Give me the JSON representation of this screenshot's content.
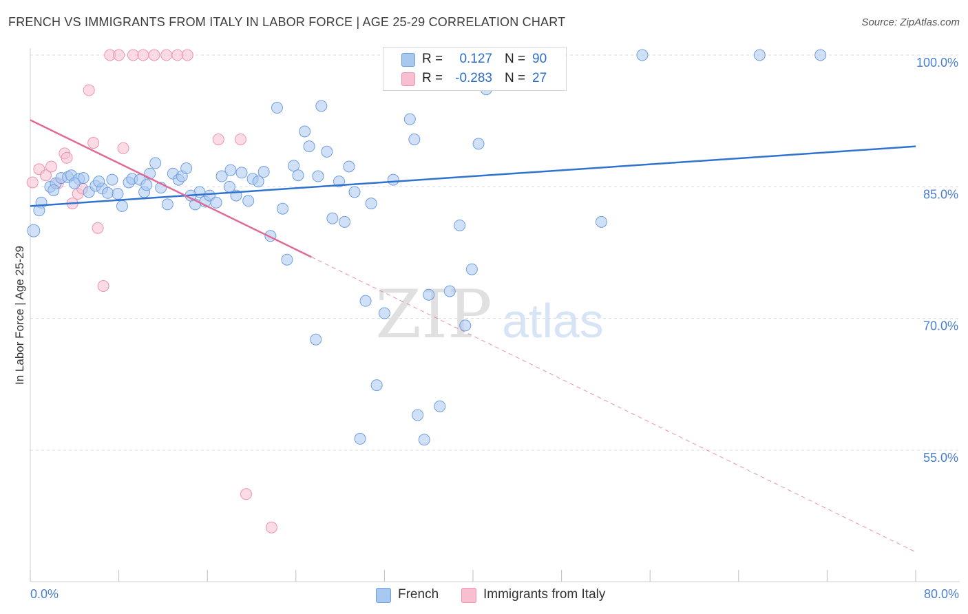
{
  "header": {
    "title": "FRENCH VS IMMIGRANTS FROM ITALY IN LABOR FORCE | AGE 25-29 CORRELATION CHART",
    "source": "Source: ZipAtlas.com"
  },
  "watermark": {
    "zip": "ZIP",
    "atlas": "atlas"
  },
  "legend": {
    "french": {
      "r_label": "R =",
      "r_value": "0.127",
      "n_label": "N =",
      "n_value": "90"
    },
    "italy": {
      "r_label": "R =",
      "r_value": "-0.283",
      "n_label": "N =",
      "n_value": "27"
    }
  },
  "colors": {
    "french_fill": "#a9c8f0",
    "french_stroke": "#6f9ee0",
    "french_line": "#2f72cf",
    "italy_fill": "#f7bfd0",
    "italy_stroke": "#ee93b0",
    "italy_line": "#e06a95",
    "tick_label": "#4a7fd0",
    "grid": "#dcdcdc"
  },
  "chart_data": {
    "type": "scatter",
    "title": "FRENCH VS IMMIGRANTS FROM ITALY IN LABOR FORCE | AGE 25-29 CORRELATION CHART",
    "xlabel": "",
    "ylabel": "In Labor Force | Age 25-29",
    "xlim": [
      0,
      80
    ],
    "ylim": [
      40,
      101.5
    ],
    "x_tick_labels": [
      "0.0%",
      "80.0%"
    ],
    "y_ticks": [
      55,
      70,
      85,
      100
    ],
    "y_tick_labels": [
      "55.0%",
      "70.0%",
      "85.0%",
      "100.0%"
    ],
    "grid": true,
    "legend_position": "top-center",
    "series": [
      {
        "name": "French",
        "points": [
          [
            0.3,
            80
          ],
          [
            1.0,
            83.2
          ],
          [
            1.8,
            85
          ],
          [
            2.3,
            85.4
          ],
          [
            2.8,
            86.0
          ],
          [
            3.4,
            86.1
          ],
          [
            3.7,
            86.3
          ],
          [
            4.4,
            85.9
          ],
          [
            4.8,
            86.0
          ],
          [
            5.3,
            84.4
          ],
          [
            5.9,
            85.1
          ],
          [
            6.5,
            84.8
          ],
          [
            7.0,
            84.3
          ],
          [
            7.4,
            85.8
          ],
          [
            7.9,
            84.2
          ],
          [
            8.3,
            82.8
          ],
          [
            8.9,
            85.5
          ],
          [
            9.2,
            85.9
          ],
          [
            9.9,
            85.8
          ],
          [
            10.3,
            84.4
          ],
          [
            10.8,
            86.5
          ],
          [
            11.3,
            87.7
          ],
          [
            11.8,
            84.9
          ],
          [
            12.4,
            83.0
          ],
          [
            12.9,
            86.5
          ],
          [
            13.4,
            85.8
          ],
          [
            13.7,
            86.2
          ],
          [
            14.1,
            87.1
          ],
          [
            14.9,
            83.0
          ],
          [
            15.3,
            84.4
          ],
          [
            15.8,
            83.3
          ],
          [
            16.2,
            84.0
          ],
          [
            16.8,
            83.2
          ],
          [
            17.3,
            86.2
          ],
          [
            18.1,
            86.9
          ],
          [
            18.6,
            84.0
          ],
          [
            19.1,
            86.6
          ],
          [
            19.7,
            83.4
          ],
          [
            20.1,
            85.9
          ],
          [
            20.6,
            85.6
          ],
          [
            21.1,
            86.7
          ],
          [
            21.7,
            79.4
          ],
          [
            22.3,
            94.0
          ],
          [
            22.8,
            82.5
          ],
          [
            23.2,
            76.7
          ],
          [
            23.8,
            87.4
          ],
          [
            24.2,
            86.3
          ],
          [
            24.8,
            91.3
          ],
          [
            25.2,
            89.6
          ],
          [
            25.8,
            67.6
          ],
          [
            26.3,
            94.2
          ],
          [
            26.8,
            89.0
          ],
          [
            27.3,
            81.4
          ],
          [
            27.9,
            85.6
          ],
          [
            28.4,
            81.0
          ],
          [
            28.8,
            87.3
          ],
          [
            29.3,
            84.4
          ],
          [
            29.8,
            56.3
          ],
          [
            30.3,
            72.0
          ],
          [
            30.8,
            83.1
          ],
          [
            31.3,
            62.4
          ],
          [
            32.0,
            70.6
          ],
          [
            32.8,
            85.8
          ],
          [
            33.3,
            100
          ],
          [
            34.3,
            92.7
          ],
          [
            34.7,
            90.4
          ],
          [
            35.0,
            59.0
          ],
          [
            35.6,
            56.2
          ],
          [
            36.0,
            72.7
          ],
          [
            36.8,
            100
          ],
          [
            37.0,
            60.0
          ],
          [
            37.9,
            73.1
          ],
          [
            38.8,
            80.6
          ],
          [
            39.3,
            69.2
          ],
          [
            39.9,
            75.6
          ],
          [
            40.5,
            89.9
          ],
          [
            41.2,
            96.1
          ],
          [
            44.4,
            100
          ],
          [
            51.6,
            81.0
          ],
          [
            55.3,
            100
          ],
          [
            65.9,
            100
          ],
          [
            71.4,
            100
          ],
          [
            4.0,
            85.4
          ],
          [
            2.1,
            84.6
          ],
          [
            6.2,
            85.6
          ],
          [
            10.5,
            85.2
          ],
          [
            14.5,
            84.0
          ],
          [
            18.0,
            85.0
          ],
          [
            26.0,
            86.2
          ],
          [
            0.8,
            82.3
          ]
        ],
        "trend_line": {
          "x": [
            0,
            80
          ],
          "y": [
            82.8,
            89.6
          ]
        }
      },
      {
        "name": "Immigrants from Italy",
        "points": [
          [
            0.2,
            85.5
          ],
          [
            0.8,
            87.0
          ],
          [
            1.4,
            86.3
          ],
          [
            1.9,
            87.3
          ],
          [
            2.5,
            85.4
          ],
          [
            3.1,
            88.8
          ],
          [
            3.3,
            88.3
          ],
          [
            3.8,
            83.1
          ],
          [
            4.3,
            84.2
          ],
          [
            4.7,
            84.8
          ],
          [
            5.3,
            96.0
          ],
          [
            5.7,
            90.0
          ],
          [
            6.1,
            80.3
          ],
          [
            6.6,
            73.7
          ],
          [
            7.2,
            100
          ],
          [
            8.0,
            100
          ],
          [
            8.4,
            89.4
          ],
          [
            9.3,
            100
          ],
          [
            10.2,
            100
          ],
          [
            11.2,
            100
          ],
          [
            12.3,
            100
          ],
          [
            13.3,
            100
          ],
          [
            14.2,
            100
          ],
          [
            17.0,
            90.4
          ],
          [
            19.0,
            90.4
          ],
          [
            19.5,
            50.0
          ],
          [
            21.8,
            46.2
          ]
        ],
        "trend_line": {
          "x": [
            0,
            25.4
          ],
          "y": [
            92.6,
            77.0
          ]
        },
        "trend_line_extended": {
          "x": [
            25.4,
            80
          ],
          "y": [
            77.0,
            43.4
          ]
        }
      }
    ]
  },
  "bottom_legend": {
    "french_label": "French",
    "italy_label": "Immigrants from Italy"
  }
}
